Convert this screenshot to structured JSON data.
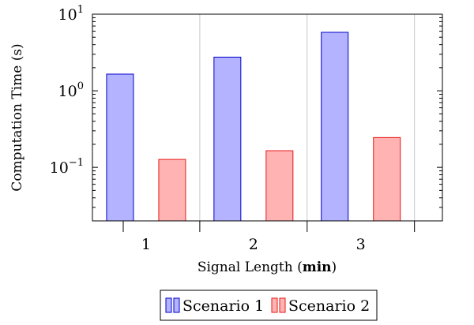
{
  "chart_data": {
    "type": "bar",
    "scale_y": "log",
    "categories": [
      "1",
      "2",
      "3"
    ],
    "series": [
      {
        "name": "Scenario 1",
        "values": [
          1.65,
          2.75,
          5.8
        ],
        "fill": "#b3b3ff",
        "stroke": "#0000cc"
      },
      {
        "name": "Scenario 2",
        "values": [
          0.127,
          0.165,
          0.245
        ],
        "fill": "#ffb3b3",
        "stroke": "#e6191a"
      }
    ],
    "xlabel": {
      "prefix": "Signal Length (",
      "unit": "min",
      "suffix": ")"
    },
    "ylabel": "Computation Time (s)",
    "ylim": [
      0.02,
      10
    ],
    "y_ticks": [
      {
        "value": 0.1,
        "base": "10",
        "exp": "−1"
      },
      {
        "value": 1,
        "base": "10",
        "exp": "0"
      },
      {
        "value": 10,
        "base": "10",
        "exp": "1"
      }
    ],
    "grid": "x-major",
    "legend": "below"
  }
}
